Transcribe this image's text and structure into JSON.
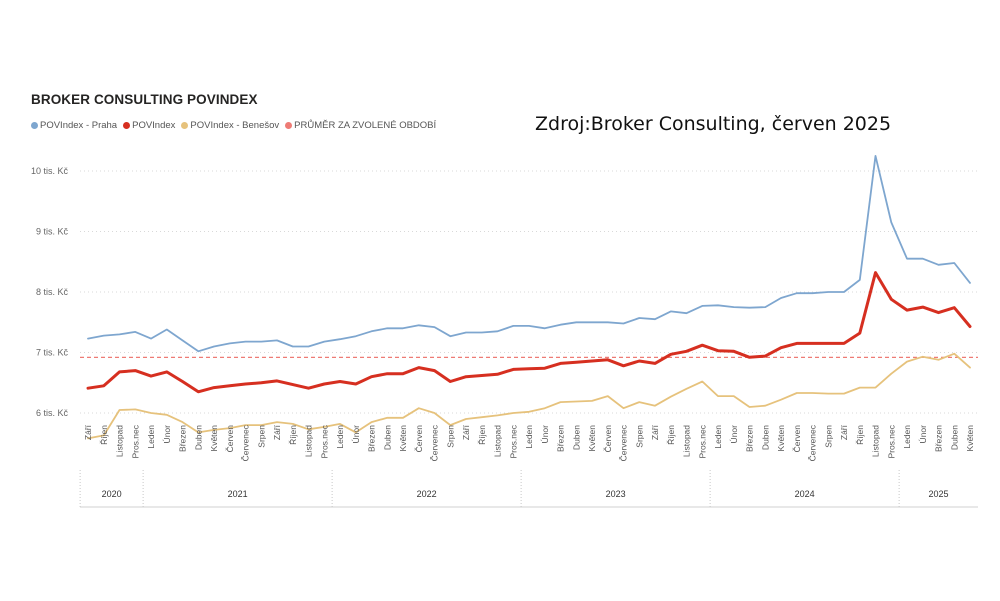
{
  "title": "BROKER CONSULTING POVINDEX",
  "source": "Zdroj:Broker Consulting, červen 2025",
  "legend": [
    {
      "label": "POVIndex - Praha",
      "color": "#7ea6cf"
    },
    {
      "label": "POVIndex",
      "color": "#d62f20"
    },
    {
      "label": "POVIndex - Benešov",
      "color": "#e6c27c"
    },
    {
      "label": "PRŮMĚR ZA ZVOLENÉ OBDOBÍ",
      "color": "#ee7b75"
    }
  ],
  "chart_data": {
    "type": "line",
    "yticks": [
      {
        "value": 6,
        "label": "6 tis. Kč"
      },
      {
        "value": 7,
        "label": "7 tis. Kč"
      },
      {
        "value": 8,
        "label": "8 tis. Kč"
      },
      {
        "value": 9,
        "label": "9 tis. Kč"
      },
      {
        "value": 10,
        "label": "10 tis. Kč"
      }
    ],
    "ylim": [
      5.5,
      10.4
    ],
    "x": [
      "Září",
      "Říjen",
      "Listopad",
      "Pros.nec",
      "Leden",
      "Únor",
      "Březen",
      "Duben",
      "Květen",
      "Červen",
      "Červenec",
      "Srpen",
      "Září",
      "Říjen",
      "Listopad",
      "Pros.nec",
      "Leden",
      "Únor",
      "Březen",
      "Duben",
      "Květen",
      "Červen",
      "Červenec",
      "Srpen",
      "Září",
      "Říjen",
      "Listopad",
      "Pros.nec",
      "Leden",
      "Únor",
      "Březen",
      "Duben",
      "Květen",
      "Červen",
      "Červenec",
      "Srpen",
      "Září",
      "Říjen",
      "Listopad",
      "Pros.nec",
      "Leden",
      "Únor",
      "Březen",
      "Duben",
      "Květen",
      "Červen",
      "Červenec",
      "Srpen",
      "Září",
      "Říjen",
      "Listopad",
      "Pros.nec",
      "Leden",
      "Únor",
      "Březen",
      "Duben",
      "Květen"
    ],
    "years": [
      {
        "label": "2020",
        "start": 0,
        "count": 4
      },
      {
        "label": "2021",
        "start": 4,
        "count": 12
      },
      {
        "label": "2022",
        "start": 16,
        "count": 12
      },
      {
        "label": "2023",
        "start": 28,
        "count": 12
      },
      {
        "label": "2024",
        "start": 40,
        "count": 12
      },
      {
        "label": "2025",
        "start": 52,
        "count": 5
      }
    ],
    "average": {
      "name": "PRŮMĚR ZA ZVOLENÉ OBDOBÍ",
      "value": 6.92,
      "color": "#ee7b75"
    },
    "series": [
      {
        "name": "POVIndex - Praha",
        "color": "#7ea6cf",
        "width": 1.8,
        "values": [
          7.23,
          7.28,
          7.3,
          7.34,
          7.23,
          7.38,
          7.2,
          7.02,
          7.1,
          7.15,
          7.18,
          7.18,
          7.2,
          7.1,
          7.1,
          7.18,
          7.22,
          7.27,
          7.35,
          7.4,
          7.4,
          7.45,
          7.42,
          7.27,
          7.33,
          7.33,
          7.35,
          7.44,
          7.44,
          7.4,
          7.46,
          7.5,
          7.5,
          7.5,
          7.48,
          7.57,
          7.55,
          7.68,
          7.65,
          7.77,
          7.78,
          7.75,
          7.74,
          7.75,
          7.9,
          7.98,
          7.98,
          8.0,
          8.0,
          8.2,
          10.25,
          9.15,
          8.55,
          8.55,
          8.45,
          8.48,
          8.15
        ]
      },
      {
        "name": "POVIndex",
        "color": "#d62f20",
        "width": 3,
        "values": [
          6.41,
          6.45,
          6.68,
          6.7,
          6.61,
          6.68,
          6.52,
          6.35,
          6.42,
          6.45,
          6.48,
          6.5,
          6.53,
          6.47,
          6.41,
          6.48,
          6.52,
          6.48,
          6.6,
          6.65,
          6.65,
          6.75,
          6.7,
          6.52,
          6.6,
          6.62,
          6.64,
          6.72,
          6.73,
          6.74,
          6.82,
          6.84,
          6.86,
          6.88,
          6.78,
          6.86,
          6.82,
          6.97,
          7.02,
          7.12,
          7.03,
          7.02,
          6.92,
          6.94,
          7.08,
          7.15,
          7.15,
          7.15,
          7.15,
          7.32,
          8.32,
          7.88,
          7.7,
          7.75,
          7.66,
          7.74,
          7.43
        ]
      },
      {
        "name": "POVIndex - Benešov",
        "color": "#e6c27c",
        "width": 1.8,
        "values": [
          5.58,
          5.63,
          6.05,
          6.06,
          6.0,
          5.97,
          5.85,
          5.68,
          5.72,
          5.75,
          5.8,
          5.8,
          5.85,
          5.82,
          5.73,
          5.77,
          5.82,
          5.68,
          5.85,
          5.92,
          5.92,
          6.08,
          6.0,
          5.8,
          5.9,
          5.93,
          5.96,
          6.0,
          6.02,
          6.08,
          6.18,
          6.19,
          6.2,
          6.28,
          6.08,
          6.18,
          6.12,
          6.27,
          6.4,
          6.52,
          6.28,
          6.28,
          6.1,
          6.12,
          6.22,
          6.33,
          6.33,
          6.32,
          6.32,
          6.42,
          6.42,
          6.65,
          6.85,
          6.93,
          6.88,
          6.98,
          6.75
        ]
      }
    ]
  }
}
